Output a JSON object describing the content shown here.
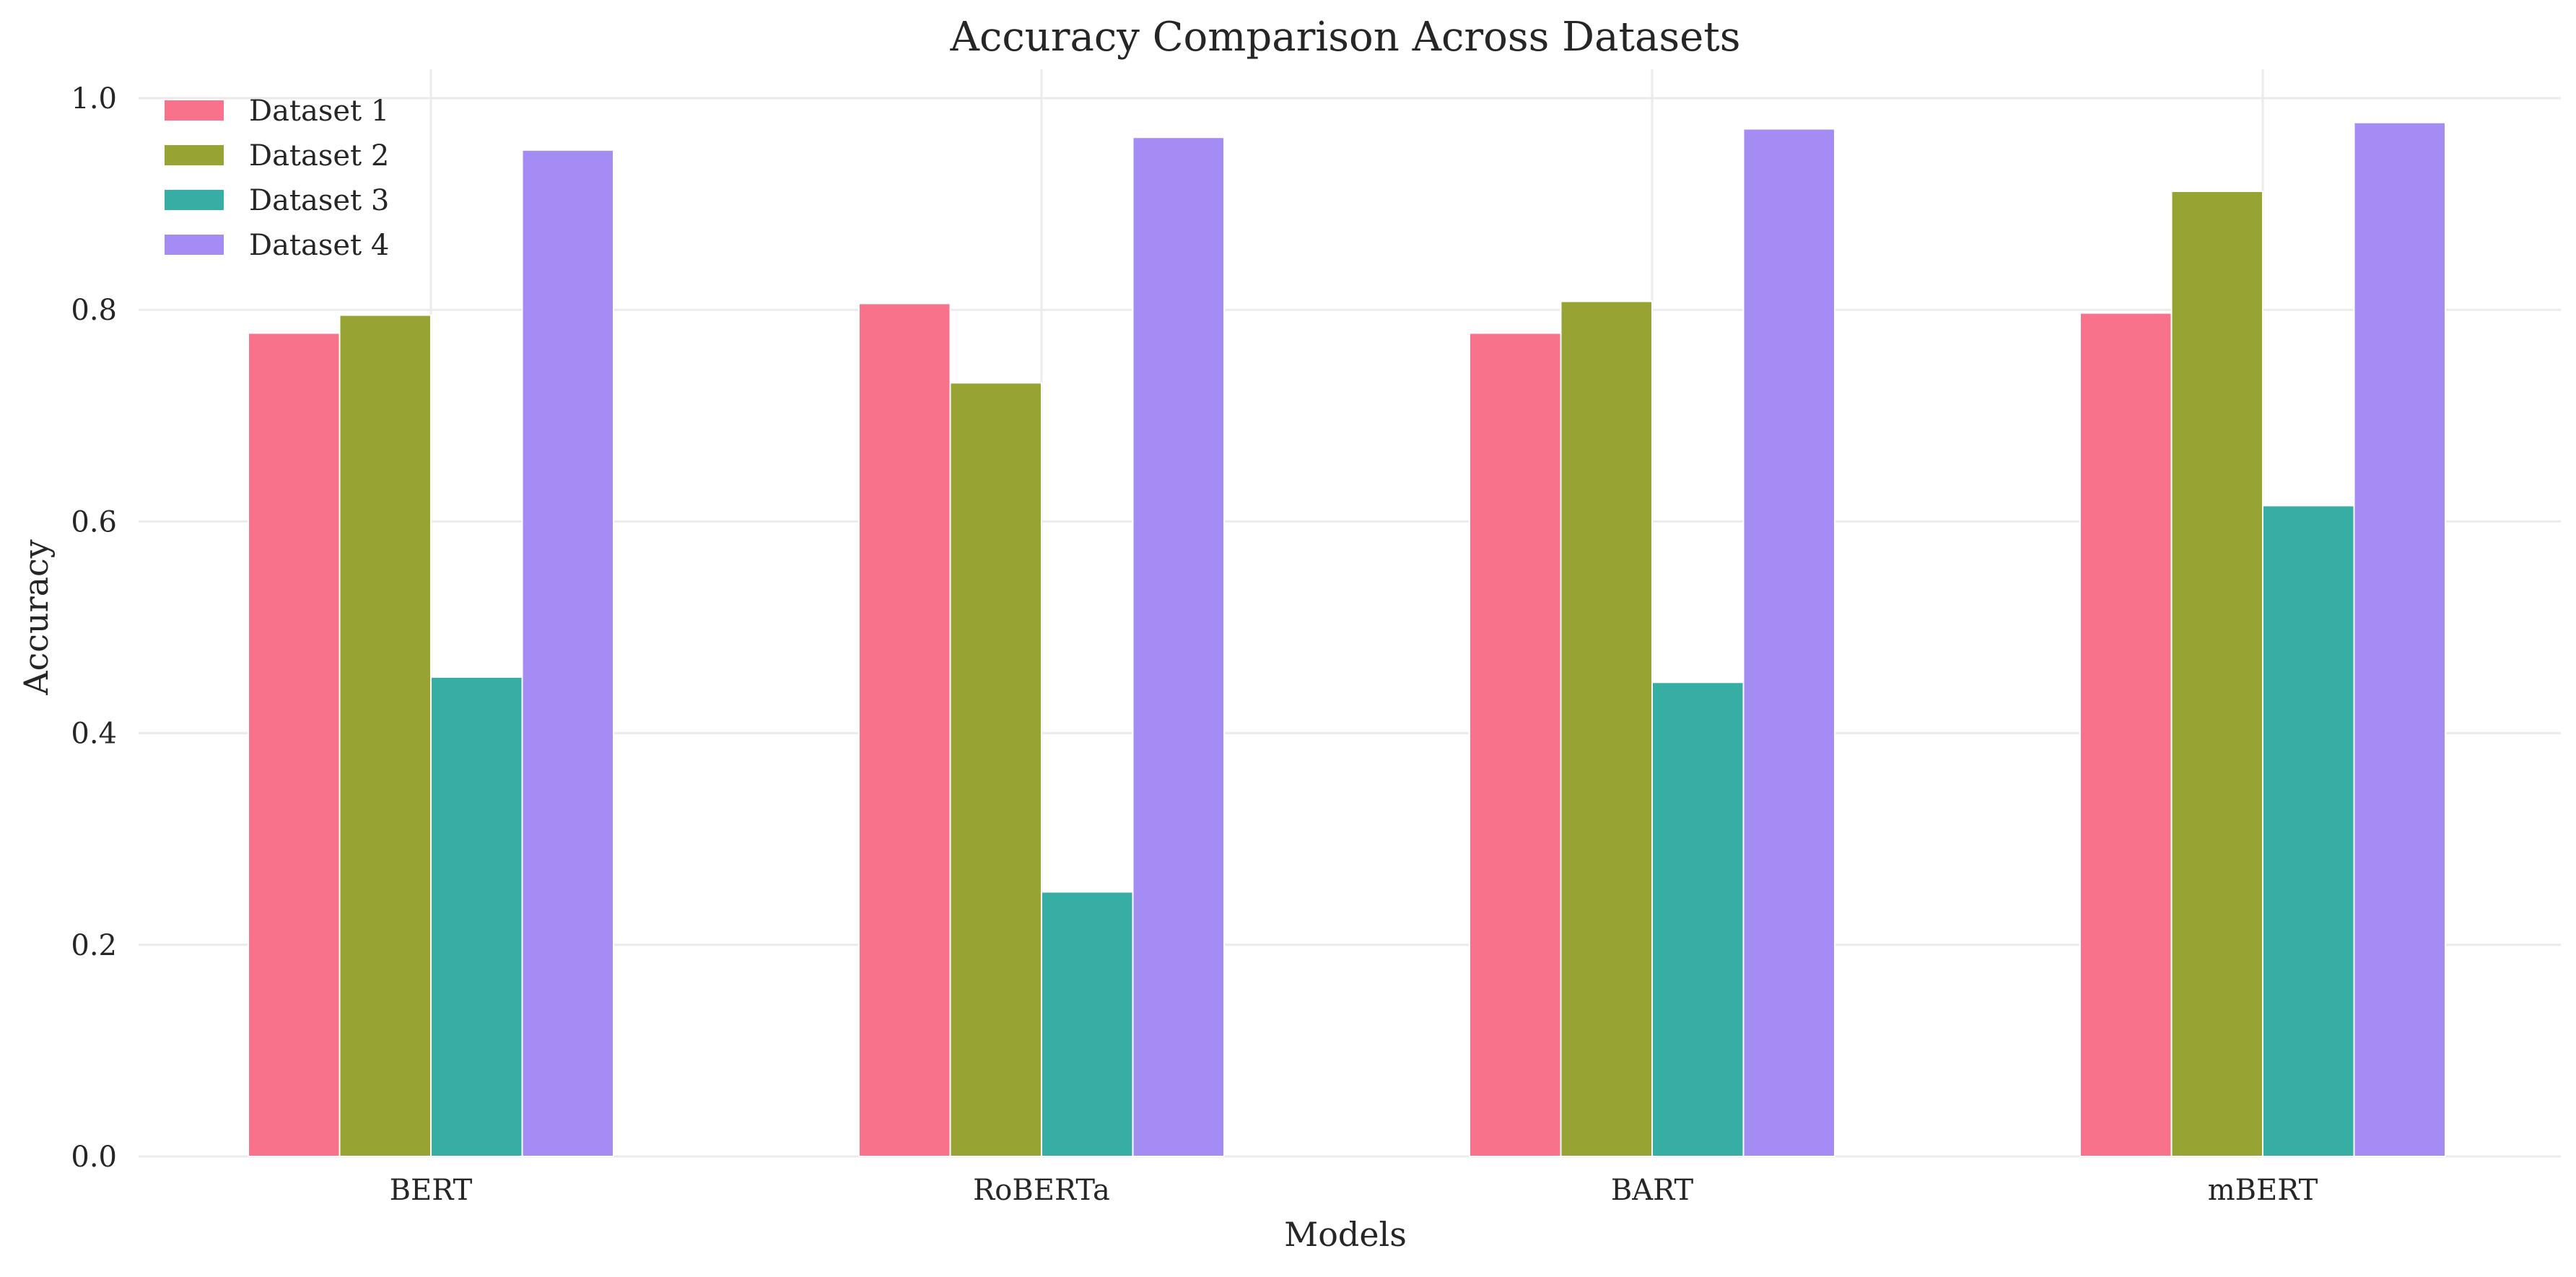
{
  "chart_data": {
    "type": "bar",
    "title": "Accuracy Comparison Across Datasets",
    "xlabel": "Models",
    "ylabel": "Accuracy",
    "categories": [
      "BERT",
      "RoBERTa",
      "BART",
      "mBERT"
    ],
    "series": [
      {
        "name": "Dataset 1",
        "color": "#f7728a",
        "values": [
          0.778,
          0.806,
          0.778,
          0.797
        ]
      },
      {
        "name": "Dataset 2",
        "color": "#97a434",
        "values": [
          0.795,
          0.731,
          0.808,
          0.912
        ]
      },
      {
        "name": "Dataset 3",
        "color": "#37aea4",
        "values": [
          0.453,
          0.25,
          0.448,
          0.615
        ]
      },
      {
        "name": "Dataset 4",
        "color": "#a58cf4",
        "values": [
          0.951,
          0.963,
          0.971,
          0.977
        ]
      }
    ],
    "ylim": [
      0,
      1.0
    ],
    "yticks": [
      "0.0",
      "0.2",
      "0.4",
      "0.6",
      "0.8",
      "1.0"
    ],
    "grid": true,
    "legend_position": "top-left"
  }
}
